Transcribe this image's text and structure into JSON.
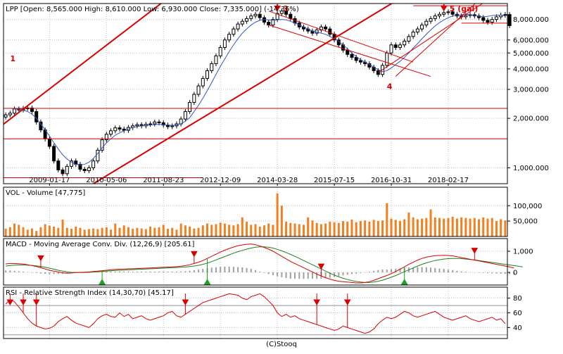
{
  "footer": "(C)Stooq",
  "colors": {
    "panel_border": "#000000",
    "grid": "#c0c0c0",
    "candle": "#000000",
    "candle_up_fill": "#ffffff",
    "trend": "#d80000",
    "sma": "#3355cc",
    "volume": "#f08020",
    "macd_line": "#d80000",
    "signal_line": "#208020",
    "histogram": "#a0a0a0",
    "rsi_line": "#d80000",
    "rsi_bounds": "#909090",
    "marker_sell": "#d80000",
    "marker_buy": "#20a020",
    "annotation": "#d80000"
  },
  "chart_data": [
    {
      "id": "price",
      "type": "candlestick",
      "title": "LPP [Open: 8,565.000  High: 8,610.000  Low: 6,930.000  Close: 7,335.000]  (-14.36%)",
      "scale": "log",
      "ylim": [
        800,
        10000
      ],
      "y_ticks": [
        1000,
        2000,
        3000,
        4000,
        5000,
        6000,
        8000
      ],
      "y_tick_labels": [
        "1,000.000",
        "2,000.000",
        "3,000.000",
        "4,000.000",
        "5,000.000",
        "6,000.000",
        "8,000.000"
      ],
      "x_tick_labels": [
        "2009-01-17",
        "2010-05-06",
        "2011-08-23",
        "2012-12-09",
        "2014-03-28",
        "2015-07-15",
        "2016-10-31",
        "2018-02-17"
      ],
      "x_tick_index": [
        10,
        23,
        36,
        49,
        62,
        75,
        88,
        101
      ],
      "close_path": [
        2100,
        2150,
        2280,
        2250,
        2300,
        2310,
        2200,
        1900,
        1700,
        1500,
        1350,
        1100,
        970,
        920,
        1020,
        1100,
        1050,
        980,
        960,
        1000,
        1100,
        1280,
        1480,
        1600,
        1680,
        1750,
        1720,
        1690,
        1760,
        1800,
        1830,
        1800,
        1840,
        1850,
        1900,
        1880,
        1820,
        1780,
        1800,
        1850,
        1980,
        2200,
        2500,
        2800,
        3150,
        3500,
        3900,
        4300,
        4800,
        5400,
        6000,
        6500,
        7000,
        7500,
        7800,
        8100,
        8400,
        8600,
        8200,
        7700,
        7400,
        8000,
        8700,
        9000,
        8600,
        8100,
        7600,
        7200,
        7000,
        6800,
        6600,
        6900,
        7200,
        7000,
        6500,
        6000,
        5600,
        5200,
        4900,
        4700,
        4500,
        4400,
        4300,
        4100,
        3900,
        3700,
        4200,
        5000,
        5600,
        5400,
        5600,
        5900,
        6300,
        6700,
        7000,
        7400,
        7800,
        8100,
        8400,
        8600,
        8800,
        8900,
        8600,
        8400,
        8300,
        8450,
        8550,
        8400,
        8200,
        7900,
        7700,
        8000,
        8300,
        8500,
        8565,
        7335
      ],
      "sma_path": [
        2300,
        2300,
        2290,
        2270,
        2240,
        2200,
        2120,
        2000,
        1850,
        1700,
        1560,
        1420,
        1300,
        1200,
        1130,
        1080,
        1050,
        1040,
        1050,
        1080,
        1140,
        1220,
        1320,
        1420,
        1500,
        1580,
        1630,
        1680,
        1720,
        1760,
        1780,
        1800,
        1810,
        1820,
        1830,
        1840,
        1830,
        1820,
        1810,
        1820,
        1850,
        1920,
        2020,
        2200,
        2400,
        2650,
        2950,
        3300,
        3700,
        4150,
        4600,
        5100,
        5600,
        6100,
        6600,
        7000,
        7400,
        7700,
        7900,
        8000,
        7950,
        7900,
        7950,
        8000,
        7950,
        7800,
        7600,
        7400,
        7200,
        7000,
        6800,
        6700,
        6600,
        6500,
        6300,
        6100,
        5900,
        5600,
        5300,
        5000,
        4750,
        4550,
        4400,
        4250,
        4100,
        3950,
        3850,
        3900,
        4050,
        4250,
        4450,
        4700,
        5000,
        5350,
        5700,
        6100,
        6500,
        6900,
        7300,
        7650,
        7950,
        8200,
        8400,
        8500,
        8550,
        8600,
        8550,
        8450,
        8350,
        8300,
        8350,
        8450,
        8500,
        8500,
        8400
      ],
      "trend_lines": [
        {
          "from": [
            -1,
            1800
          ],
          "to": [
            41,
            13000
          ]
        },
        {
          "from": [
            20,
            800
          ],
          "to": [
            93,
            12000
          ]
        },
        {
          "from": [
            -1,
            1500
          ],
          "to": [
            125,
            1500
          ]
        },
        {
          "from": [
            -1,
            2300
          ],
          "to": [
            125,
            2300
          ]
        },
        {
          "from": [
            -1,
            870
          ],
          "to": [
            45,
            870
          ]
        },
        {
          "from": [
            60,
            9000
          ],
          "to": [
            93,
            4400
          ]
        },
        {
          "from": [
            60,
            7400
          ],
          "to": [
            97,
            3600
          ]
        },
        {
          "from": [
            89,
            3600
          ],
          "to": [
            108,
            10500
          ]
        },
        {
          "from": [
            85,
            3800
          ],
          "to": [
            110,
            10500
          ]
        },
        {
          "from": [
            93,
            9700
          ],
          "to": [
            125,
            9700
          ]
        },
        {
          "from": [
            104,
            7600
          ],
          "to": [
            125,
            7600
          ]
        }
      ],
      "annotations": [
        {
          "text": "1",
          "x": 1,
          "y": 4500
        },
        {
          "text": "3",
          "x": 62,
          "y": 11500,
          "arrow": true
        },
        {
          "text": "4",
          "x": 87,
          "y": 3050
        },
        {
          "text": "5 (gal)",
          "x": 100,
          "y": 11500,
          "arrow": true
        }
      ]
    },
    {
      "id": "volume",
      "type": "bar",
      "title": "VOL - Volume [47,775]",
      "ylim": [
        0,
        160000
      ],
      "y_ticks": [
        50000,
        100000
      ],
      "y_tick_labels": [
        "50,000",
        "100,000"
      ],
      "values": [
        25000,
        30000,
        42000,
        38000,
        30000,
        22000,
        26000,
        18000,
        30000,
        40000,
        35000,
        32000,
        28000,
        55000,
        28000,
        25000,
        32000,
        28000,
        22000,
        24000,
        26000,
        24000,
        28000,
        30000,
        22000,
        42000,
        28000,
        36000,
        30000,
        25000,
        28000,
        26000,
        24000,
        32000,
        28000,
        30000,
        38000,
        25000,
        28000,
        22000,
        42000,
        36000,
        32000,
        26000,
        28000,
        36000,
        42000,
        38000,
        40000,
        45000,
        42000,
        38000,
        36000,
        40000,
        62000,
        48000,
        38000,
        40000,
        32000,
        36000,
        42000,
        38000,
        140000,
        100000,
        48000,
        44000,
        42000,
        40000,
        38000,
        62000,
        52000,
        44000,
        40000,
        42000,
        48000,
        46000,
        44000,
        50000,
        48000,
        55000,
        46000,
        50000,
        52000,
        48000,
        54000,
        50000,
        52000,
        108000,
        58000,
        54000,
        50000,
        56000,
        78000,
        62000,
        56000,
        58000,
        60000,
        88000,
        62000,
        60000,
        58000,
        60000,
        64000,
        58000,
        62000,
        60000,
        58000,
        60000,
        56000,
        62000,
        58000,
        60000,
        50000,
        56000,
        52000
      ]
    },
    {
      "id": "macd",
      "type": "line",
      "title": "MACD - Moving Average Conv. Div. (12,26,9) [205.61]",
      "ylim": [
        -600,
        1600
      ],
      "y_ticks": [
        0,
        1000
      ],
      "y_tick_labels": [
        "0",
        "1,000"
      ],
      "macd": [
        400,
        420,
        420,
        410,
        390,
        360,
        320,
        280,
        220,
        160,
        100,
        60,
        20,
        -20,
        -40,
        -30,
        -10,
        0,
        10,
        20,
        40,
        60,
        80,
        100,
        120,
        140,
        150,
        160,
        170,
        170,
        180,
        190,
        200,
        210,
        220,
        230,
        240,
        250,
        260,
        270,
        290,
        320,
        360,
        420,
        480,
        560,
        660,
        760,
        860,
        960,
        1050,
        1130,
        1200,
        1260,
        1300,
        1330,
        1340,
        1310,
        1250,
        1180,
        1100,
        1000,
        880,
        760,
        640,
        520,
        420,
        320,
        220,
        120,
        20,
        -80,
        -170,
        -250,
        -320,
        -380,
        -420,
        -440,
        -460,
        -480,
        -500,
        -500,
        -480,
        -440,
        -380,
        -300,
        -220,
        -150,
        -60,
        40,
        150,
        260,
        380,
        480,
        580,
        660,
        720,
        760,
        790,
        800,
        810,
        800,
        780,
        740,
        700,
        660,
        620,
        580,
        540,
        500,
        460,
        420,
        380,
        340,
        300,
        260,
        205.61
      ],
      "signal": [
        300,
        320,
        340,
        350,
        350,
        340,
        330,
        310,
        280,
        240,
        200,
        150,
        100,
        60,
        20,
        0,
        -10,
        -10,
        -5,
        5,
        15,
        30,
        45,
        60,
        75,
        90,
        100,
        110,
        120,
        130,
        140,
        150,
        160,
        170,
        180,
        190,
        200,
        210,
        220,
        230,
        240,
        255,
        275,
        300,
        335,
        380,
        440,
        510,
        590,
        670,
        750,
        830,
        910,
        980,
        1040,
        1100,
        1150,
        1190,
        1210,
        1210,
        1190,
        1150,
        1090,
        1020,
        940,
        850,
        760,
        660,
        560,
        460,
        360,
        260,
        160,
        60,
        -40,
        -130,
        -210,
        -280,
        -340,
        -390,
        -430,
        -460,
        -480,
        -480,
        -460,
        -420,
        -370,
        -300,
        -230,
        -150,
        -60,
        30,
        120,
        210,
        300,
        380,
        450,
        510,
        560,
        600,
        630,
        650,
        660,
        660,
        650,
        630,
        610,
        590,
        560,
        530,
        500,
        470,
        440,
        410,
        380,
        350,
        320,
        290,
        260
      ],
      "sell_markers": [
        8,
        43,
        72,
        107
      ],
      "buy_markers": [
        22,
        46,
        91
      ]
    },
    {
      "id": "rsi",
      "type": "line",
      "title": "RSI - Relative Strength Index (14,30,70) [45.17]",
      "ylim": [
        25,
        95
      ],
      "y_ticks": [
        40,
        60,
        80
      ],
      "y_tick_labels": [
        "40",
        "60",
        "80"
      ],
      "bounds": [
        30,
        70
      ],
      "values": [
        72,
        78,
        75,
        68,
        60,
        52,
        46,
        42,
        40,
        38,
        39,
        42,
        48,
        52,
        55,
        50,
        46,
        44,
        42,
        40,
        45,
        52,
        56,
        58,
        55,
        54,
        60,
        55,
        58,
        52,
        54,
        56,
        52,
        50,
        52,
        54,
        56,
        60,
        62,
        56,
        54,
        58,
        62,
        66,
        70,
        74,
        76,
        78,
        80,
        82,
        84,
        86,
        85,
        84,
        80,
        78,
        82,
        84,
        86,
        82,
        76,
        70,
        60,
        55,
        58,
        54,
        56,
        52,
        50,
        48,
        46,
        44,
        42,
        40,
        38,
        36,
        38,
        42,
        40,
        38,
        36,
        34,
        32,
        34,
        38,
        45,
        50,
        54,
        52,
        54,
        58,
        62,
        60,
        56,
        54,
        56,
        58,
        60,
        62,
        58,
        54,
        52,
        50,
        52,
        54,
        56,
        52,
        50,
        48,
        50,
        52,
        54,
        50,
        52,
        45.17
      ],
      "sell_markers": [
        1,
        4,
        7,
        41,
        71,
        78
      ]
    }
  ]
}
